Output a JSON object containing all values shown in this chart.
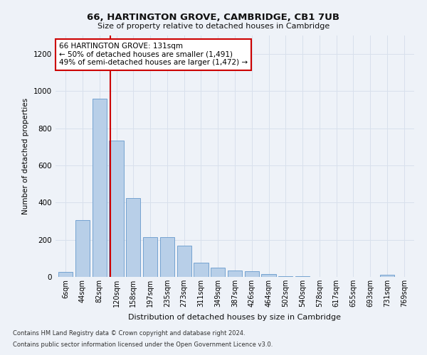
{
  "title1": "66, HARTINGTON GROVE, CAMBRIDGE, CB1 7UB",
  "title2": "Size of property relative to detached houses in Cambridge",
  "xlabel": "Distribution of detached houses by size in Cambridge",
  "ylabel": "Number of detached properties",
  "bar_labels": [
    "6sqm",
    "44sqm",
    "82sqm",
    "120sqm",
    "158sqm",
    "197sqm",
    "235sqm",
    "273sqm",
    "311sqm",
    "349sqm",
    "387sqm",
    "426sqm",
    "464sqm",
    "502sqm",
    "540sqm",
    "578sqm",
    "617sqm",
    "655sqm",
    "693sqm",
    "731sqm",
    "769sqm"
  ],
  "bar_values": [
    25,
    305,
    960,
    735,
    425,
    213,
    213,
    170,
    75,
    50,
    35,
    32,
    15,
    5,
    5,
    0,
    0,
    0,
    0,
    10,
    0
  ],
  "bar_color": "#b8cfe8",
  "bar_edge_color": "#6699cc",
  "grid_color": "#d8e0ec",
  "annotation_box_text": "66 HARTINGTON GROVE: 131sqm\n← 50% of detached houses are smaller (1,491)\n49% of semi-detached houses are larger (1,472) →",
  "annotation_box_color": "#ffffff",
  "annotation_box_edge_color": "#cc0000",
  "vline_color": "#cc0000",
  "vline_x": 2.62,
  "ylim": [
    0,
    1300
  ],
  "yticks": [
    0,
    200,
    400,
    600,
    800,
    1000,
    1200
  ],
  "footer1": "Contains HM Land Registry data © Crown copyright and database right 2024.",
  "footer2": "Contains public sector information licensed under the Open Government Licence v3.0.",
  "background_color": "#eef2f8"
}
